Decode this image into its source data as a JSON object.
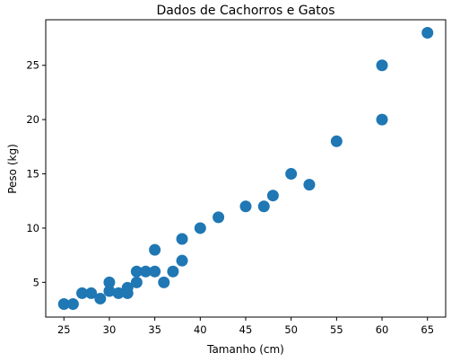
{
  "chart_data": {
    "type": "scatter",
    "title": "Dados de Cachorros e Gatos",
    "xlabel": "Tamanho (cm)",
    "ylabel": "Peso (kg)",
    "xlim": [
      23.0,
      67.0
    ],
    "ylim": [
      1.8,
      29.2
    ],
    "xticks": [
      25,
      30,
      35,
      40,
      45,
      50,
      55,
      60,
      65
    ],
    "yticks": [
      5,
      10,
      15,
      20,
      25
    ],
    "grid": false,
    "marker_color": "#1f77b4",
    "points": [
      {
        "x": 25,
        "y": 3
      },
      {
        "x": 26,
        "y": 3
      },
      {
        "x": 27,
        "y": 4
      },
      {
        "x": 28,
        "y": 4
      },
      {
        "x": 29,
        "y": 3.5
      },
      {
        "x": 30,
        "y": 4.2
      },
      {
        "x": 30,
        "y": 5
      },
      {
        "x": 31,
        "y": 4
      },
      {
        "x": 32,
        "y": 4.5
      },
      {
        "x": 32,
        "y": 4
      },
      {
        "x": 33,
        "y": 5
      },
      {
        "x": 33,
        "y": 6
      },
      {
        "x": 34,
        "y": 6
      },
      {
        "x": 35,
        "y": 6
      },
      {
        "x": 35,
        "y": 8
      },
      {
        "x": 36,
        "y": 5
      },
      {
        "x": 37,
        "y": 6
      },
      {
        "x": 38,
        "y": 7
      },
      {
        "x": 38,
        "y": 9
      },
      {
        "x": 40,
        "y": 10
      },
      {
        "x": 42,
        "y": 11
      },
      {
        "x": 45,
        "y": 12
      },
      {
        "x": 47,
        "y": 12
      },
      {
        "x": 48,
        "y": 13
      },
      {
        "x": 50,
        "y": 15
      },
      {
        "x": 52,
        "y": 14
      },
      {
        "x": 55,
        "y": 18
      },
      {
        "x": 60,
        "y": 20
      },
      {
        "x": 60,
        "y": 25
      },
      {
        "x": 65,
        "y": 28
      }
    ]
  }
}
